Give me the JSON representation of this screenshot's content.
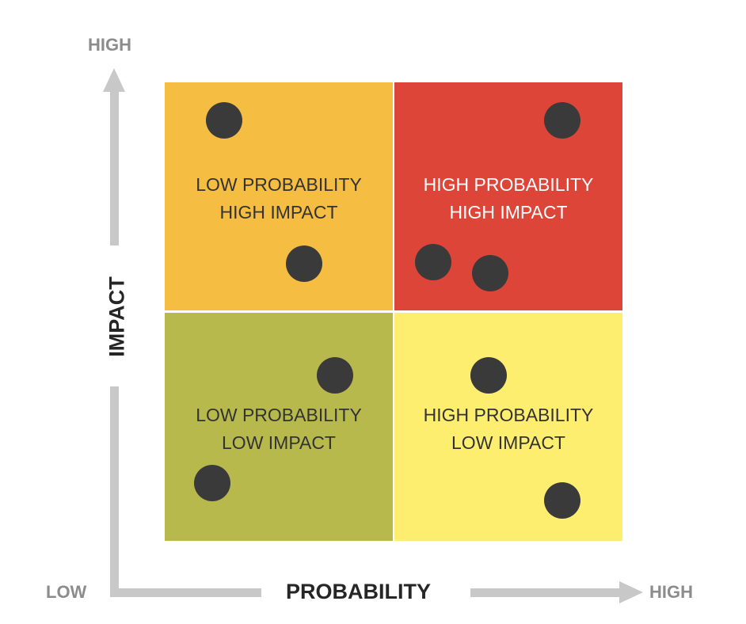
{
  "axes": {
    "y_high": "HIGH",
    "y_title": "IMPACT",
    "x_low": "LOW",
    "x_title": "PROBABILITY",
    "x_high": "HIGH"
  },
  "quadrants": [
    {
      "id": "low-probability-high-impact",
      "line1": "LOW PROBABILITY",
      "line2": "HIGH IMPACT",
      "color": "#F5BE42",
      "text_color": "#333333"
    },
    {
      "id": "high-probability-high-impact",
      "line1": "HIGH PROBABILITY",
      "line2": "HIGH IMPACT",
      "color": "#DE4539",
      "text_color": "#ffffff"
    },
    {
      "id": "low-probability-low-impact",
      "line1": "LOW PROBABILITY",
      "line2": "LOW IMPACT",
      "color": "#B8B94D",
      "text_color": "#333333"
    },
    {
      "id": "high-probability-low-impact",
      "line1": "HIGH PROBABILITY",
      "line2": "LOW IMPACT",
      "color": "#FDEE70",
      "text_color": "#333333"
    }
  ],
  "colors": {
    "axis": "#c8c8c8",
    "dot": "#3a3a3a"
  }
}
